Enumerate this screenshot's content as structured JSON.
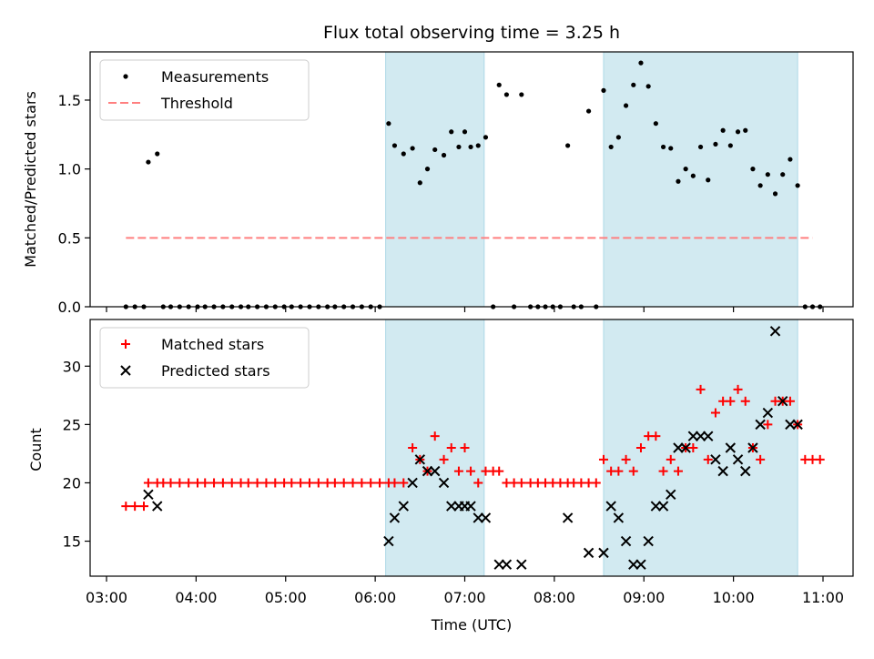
{
  "chart_data": {
    "title": "Flux total observing time = 3.25 h",
    "xlabel": "Time (UTC)",
    "x_ticks": [
      "03:00",
      "04:00",
      "05:00",
      "06:00",
      "07:00",
      "08:00",
      "09:00",
      "10:00",
      "11:00"
    ],
    "shaded_intervals": [
      [
        "06:07",
        "07:13"
      ],
      [
        "08:33",
        "10:43"
      ]
    ],
    "colors": {
      "shade": "#add8e6",
      "threshold": "#ff7f7f",
      "matched": "#ff0000",
      "predicted": "#000000",
      "measurement": "#000000"
    },
    "panels": [
      {
        "type": "scatter",
        "ylabel": "Matched/Predicted stars",
        "ylim": [
          0,
          1.85
        ],
        "yticks": [
          "0.0",
          "0.5",
          "1.0",
          "1.5"
        ],
        "legend": {
          "position": "top-left",
          "entries": [
            "Measurements",
            "Threshold"
          ]
        },
        "threshold": {
          "name": "Threshold",
          "value": 0.5,
          "x_range": [
            "03:13",
            "10:53"
          ]
        },
        "series": [
          {
            "name": "Measurements",
            "marker": "dot",
            "points": [
              [
                "03:13",
                0
              ],
              [
                "03:19",
                0
              ],
              [
                "03:25",
                0
              ],
              [
                "03:28",
                1.05
              ],
              [
                "03:34",
                1.11
              ],
              [
                "03:38",
                0
              ],
              [
                "03:43",
                0
              ],
              [
                "03:49",
                0
              ],
              [
                "03:55",
                0
              ],
              [
                "04:01",
                0
              ],
              [
                "04:06",
                0
              ],
              [
                "04:12",
                0
              ],
              [
                "04:18",
                0
              ],
              [
                "04:24",
                0
              ],
              [
                "04:30",
                0
              ],
              [
                "04:35",
                0
              ],
              [
                "04:41",
                0
              ],
              [
                "04:47",
                0
              ],
              [
                "04:53",
                0
              ],
              [
                "04:59",
                0
              ],
              [
                "05:04",
                0
              ],
              [
                "05:10",
                0
              ],
              [
                "05:16",
                0
              ],
              [
                "05:22",
                0
              ],
              [
                "05:28",
                0
              ],
              [
                "05:33",
                0
              ],
              [
                "05:39",
                0
              ],
              [
                "05:45",
                0
              ],
              [
                "05:51",
                0
              ],
              [
                "05:57",
                0
              ],
              [
                "06:03",
                0
              ],
              [
                "06:09",
                1.33
              ],
              [
                "06:13",
                1.17
              ],
              [
                "06:19",
                1.11
              ],
              [
                "06:25",
                1.15
              ],
              [
                "06:30",
                0.9
              ],
              [
                "06:35",
                1.0
              ],
              [
                "06:40",
                1.14
              ],
              [
                "06:46",
                1.1
              ],
              [
                "06:51",
                1.27
              ],
              [
                "06:56",
                1.16
              ],
              [
                "07:00",
                1.27
              ],
              [
                "07:04",
                1.16
              ],
              [
                "07:09",
                1.17
              ],
              [
                "07:14",
                1.23
              ],
              [
                "07:19",
                0
              ],
              [
                "07:23",
                1.61
              ],
              [
                "07:28",
                1.54
              ],
              [
                "07:33",
                0
              ],
              [
                "07:38",
                1.54
              ],
              [
                "07:44",
                0
              ],
              [
                "07:49",
                0
              ],
              [
                "07:54",
                0
              ],
              [
                "07:59",
                0
              ],
              [
                "08:04",
                0
              ],
              [
                "08:09",
                1.17
              ],
              [
                "08:13",
                0
              ],
              [
                "08:18",
                0
              ],
              [
                "08:23",
                1.42
              ],
              [
                "08:28",
                0
              ],
              [
                "08:33",
                1.57
              ],
              [
                "08:38",
                1.16
              ],
              [
                "08:43",
                1.23
              ],
              [
                "08:48",
                1.46
              ],
              [
                "08:53",
                1.61
              ],
              [
                "08:58",
                1.77
              ],
              [
                "09:03",
                1.6
              ],
              [
                "09:08",
                1.33
              ],
              [
                "09:13",
                1.16
              ],
              [
                "09:18",
                1.15
              ],
              [
                "09:23",
                0.91
              ],
              [
                "09:28",
                1.0
              ],
              [
                "09:33",
                0.95
              ],
              [
                "09:38",
                1.16
              ],
              [
                "09:43",
                0.92
              ],
              [
                "09:48",
                1.18
              ],
              [
                "09:53",
                1.28
              ],
              [
                "09:58",
                1.17
              ],
              [
                "10:03",
                1.27
              ],
              [
                "10:08",
                1.28
              ],
              [
                "10:13",
                1.0
              ],
              [
                "10:18",
                0.88
              ],
              [
                "10:23",
                0.96
              ],
              [
                "10:28",
                0.82
              ],
              [
                "10:33",
                0.96
              ],
              [
                "10:38",
                1.07
              ],
              [
                "10:43",
                0.88
              ],
              [
                "10:48",
                0
              ],
              [
                "10:53",
                0
              ],
              [
                "10:58",
                0
              ]
            ]
          }
        ]
      },
      {
        "type": "scatter",
        "ylabel": "Count",
        "ylim": [
          12,
          34
        ],
        "yticks": [
          "15",
          "20",
          "25",
          "30"
        ],
        "legend": {
          "position": "top-left",
          "entries": [
            "Matched stars",
            "Predicted stars"
          ]
        },
        "series": [
          {
            "name": "Matched stars",
            "marker": "plus",
            "points": [
              [
                "03:13",
                18
              ],
              [
                "03:19",
                18
              ],
              [
                "03:25",
                18
              ],
              [
                "03:28",
                20
              ],
              [
                "03:34",
                20
              ],
              [
                "03:38",
                20
              ],
              [
                "03:43",
                20
              ],
              [
                "03:49",
                20
              ],
              [
                "03:55",
                20
              ],
              [
                "04:01",
                20
              ],
              [
                "04:06",
                20
              ],
              [
                "04:12",
                20
              ],
              [
                "04:18",
                20
              ],
              [
                "04:24",
                20
              ],
              [
                "04:30",
                20
              ],
              [
                "04:35",
                20
              ],
              [
                "04:41",
                20
              ],
              [
                "04:47",
                20
              ],
              [
                "04:53",
                20
              ],
              [
                "04:59",
                20
              ],
              [
                "05:04",
                20
              ],
              [
                "05:10",
                20
              ],
              [
                "05:16",
                20
              ],
              [
                "05:22",
                20
              ],
              [
                "05:28",
                20
              ],
              [
                "05:33",
                20
              ],
              [
                "05:39",
                20
              ],
              [
                "05:45",
                20
              ],
              [
                "05:51",
                20
              ],
              [
                "05:57",
                20
              ],
              [
                "06:03",
                20
              ],
              [
                "06:09",
                20
              ],
              [
                "06:13",
                20
              ],
              [
                "06:19",
                20
              ],
              [
                "06:25",
                23
              ],
              [
                "06:30",
                22
              ],
              [
                "06:35",
                21
              ],
              [
                "06:40",
                24
              ],
              [
                "06:46",
                22
              ],
              [
                "06:51",
                23
              ],
              [
                "06:56",
                21
              ],
              [
                "07:00",
                23
              ],
              [
                "07:04",
                21
              ],
              [
                "07:09",
                20
              ],
              [
                "07:14",
                21
              ],
              [
                "07:19",
                21
              ],
              [
                "07:23",
                21
              ],
              [
                "07:28",
                20
              ],
              [
                "07:33",
                20
              ],
              [
                "07:38",
                20
              ],
              [
                "07:44",
                20
              ],
              [
                "07:49",
                20
              ],
              [
                "07:54",
                20
              ],
              [
                "07:59",
                20
              ],
              [
                "08:04",
                20
              ],
              [
                "08:09",
                20
              ],
              [
                "08:13",
                20
              ],
              [
                "08:18",
                20
              ],
              [
                "08:23",
                20
              ],
              [
                "08:28",
                20
              ],
              [
                "08:33",
                22
              ],
              [
                "08:38",
                21
              ],
              [
                "08:43",
                21
              ],
              [
                "08:48",
                22
              ],
              [
                "08:53",
                21
              ],
              [
                "08:58",
                23
              ],
              [
                "09:03",
                24
              ],
              [
                "09:08",
                24
              ],
              [
                "09:13",
                21
              ],
              [
                "09:18",
                22
              ],
              [
                "09:23",
                21
              ],
              [
                "09:28",
                23
              ],
              [
                "09:33",
                23
              ],
              [
                "09:38",
                28
              ],
              [
                "09:43",
                22
              ],
              [
                "09:48",
                26
              ],
              [
                "09:53",
                27
              ],
              [
                "09:58",
                27
              ],
              [
                "10:03",
                28
              ],
              [
                "10:08",
                27
              ],
              [
                "10:13",
                23
              ],
              [
                "10:18",
                22
              ],
              [
                "10:23",
                25
              ],
              [
                "10:28",
                27
              ],
              [
                "10:33",
                27
              ],
              [
                "10:38",
                27
              ],
              [
                "10:43",
                25
              ],
              [
                "10:48",
                22
              ],
              [
                "10:53",
                22
              ],
              [
                "10:58",
                22
              ]
            ]
          },
          {
            "name": "Predicted stars",
            "marker": "x",
            "points": [
              [
                "03:28",
                19
              ],
              [
                "03:34",
                18
              ],
              [
                "06:09",
                15
              ],
              [
                "06:13",
                17
              ],
              [
                "06:19",
                18
              ],
              [
                "06:25",
                20
              ],
              [
                "06:30",
                22
              ],
              [
                "06:35",
                21
              ],
              [
                "06:40",
                21
              ],
              [
                "06:46",
                20
              ],
              [
                "06:51",
                18
              ],
              [
                "06:56",
                18
              ],
              [
                "07:00",
                18
              ],
              [
                "07:04",
                18
              ],
              [
                "07:09",
                17
              ],
              [
                "07:14",
                17
              ],
              [
                "07:23",
                13
              ],
              [
                "07:28",
                13
              ],
              [
                "07:38",
                13
              ],
              [
                "08:09",
                17
              ],
              [
                "08:23",
                14
              ],
              [
                "08:33",
                14
              ],
              [
                "08:38",
                18
              ],
              [
                "08:43",
                17
              ],
              [
                "08:48",
                15
              ],
              [
                "08:53",
                13
              ],
              [
                "08:58",
                13
              ],
              [
                "09:03",
                15
              ],
              [
                "09:08",
                18
              ],
              [
                "09:13",
                18
              ],
              [
                "09:18",
                19
              ],
              [
                "09:23",
                23
              ],
              [
                "09:28",
                23
              ],
              [
                "09:33",
                24
              ],
              [
                "09:38",
                24
              ],
              [
                "09:43",
                24
              ],
              [
                "09:48",
                22
              ],
              [
                "09:53",
                21
              ],
              [
                "09:58",
                23
              ],
              [
                "10:03",
                22
              ],
              [
                "10:08",
                21
              ],
              [
                "10:13",
                23
              ],
              [
                "10:18",
                25
              ],
              [
                "10:23",
                26
              ],
              [
                "10:28",
                33
              ],
              [
                "10:33",
                27
              ],
              [
                "10:38",
                25
              ],
              [
                "10:43",
                25
              ]
            ]
          }
        ]
      }
    ]
  }
}
